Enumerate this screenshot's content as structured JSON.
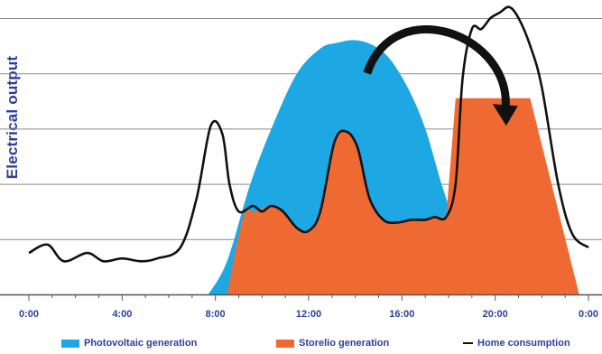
{
  "chart_data": {
    "type": "area",
    "ylabel": "Electrical output",
    "xlabel": "",
    "title": "",
    "x_ticks": [
      "0:00",
      "4:00",
      "8:00",
      "12:00",
      "16:00",
      "20:00",
      "0:00"
    ],
    "x_tick_hours": [
      0,
      4,
      8,
      12,
      16,
      20,
      24
    ],
    "xlim": [
      0,
      24
    ],
    "ylim": [
      0,
      100
    ],
    "grid": true,
    "legend_placement": "bottom",
    "colors": {
      "photovoltaic": "#1da8e3",
      "storelio": "#ef6a32",
      "home": "#111111",
      "grid": "#8a8a8a",
      "label": "#2a3f9e"
    },
    "series": [
      {
        "name": "Photovoltaic generation",
        "kind": "area",
        "x": [
          7.7,
          8.5,
          9.5,
          10.5,
          11.5,
          12.5,
          13.2,
          14,
          14.8,
          15.5,
          16.3,
          17,
          17.7,
          18.3,
          19,
          19.6,
          20.1
        ],
        "y": [
          0,
          12,
          40,
          62,
          80,
          89,
          91,
          92,
          90,
          85,
          74,
          60,
          40,
          25,
          10,
          3,
          0
        ]
      },
      {
        "name": "Storelio generation",
        "kind": "area",
        "x": [
          8.5,
          9.2,
          9.7,
          10.4,
          10.9,
          11.5,
          12,
          12.5,
          13.1,
          13.6,
          14.1,
          14.6,
          15.2,
          15.8,
          16.4,
          17,
          17.4,
          17.9,
          18.3,
          21.5,
          23.6
        ],
        "y": [
          0,
          28,
          30,
          32,
          30,
          24,
          23,
          30,
          55,
          59,
          53,
          35,
          27,
          26,
          27,
          27,
          28,
          28,
          71,
          71,
          0
        ]
      },
      {
        "name": "Home consumption",
        "kind": "line",
        "x": [
          0,
          0.8,
          1.5,
          2.5,
          3.2,
          4,
          4.8,
          5.5,
          6.5,
          7.2,
          7.8,
          8.3,
          8.6,
          9,
          9.6,
          10,
          10.4,
          10.9,
          11.5,
          12,
          12.5,
          13.1,
          13.6,
          14.1,
          14.6,
          15.2,
          15.8,
          16.4,
          17,
          17.4,
          17.9,
          18.3,
          18.6,
          19,
          19.4,
          19.8,
          20.2,
          20.6,
          21,
          21.5,
          22,
          22.7,
          23.3,
          24
        ],
        "y": [
          15,
          18,
          12,
          15,
          12,
          13,
          12,
          13,
          17,
          35,
          61,
          58,
          40,
          30,
          32,
          30,
          32,
          30,
          24,
          23,
          30,
          55,
          59,
          53,
          35,
          27,
          26,
          27,
          27,
          28,
          28,
          40,
          78,
          96,
          96,
          100,
          102,
          104,
          100,
          90,
          75,
          40,
          22,
          17
        ]
      }
    ],
    "annotations": [
      {
        "type": "curved-arrow",
        "from_hour": 14.7,
        "to_hour": 20.2,
        "meaning": "energy shifted from midday to evening"
      }
    ]
  },
  "legend": [
    {
      "label": "Photovoltaic generation",
      "style": "box",
      "color": "#1da8e3"
    },
    {
      "label": "Storelio generation",
      "style": "box",
      "color": "#ef6a32"
    },
    {
      "label": "Home consumption",
      "style": "line",
      "color": "#111111"
    }
  ]
}
